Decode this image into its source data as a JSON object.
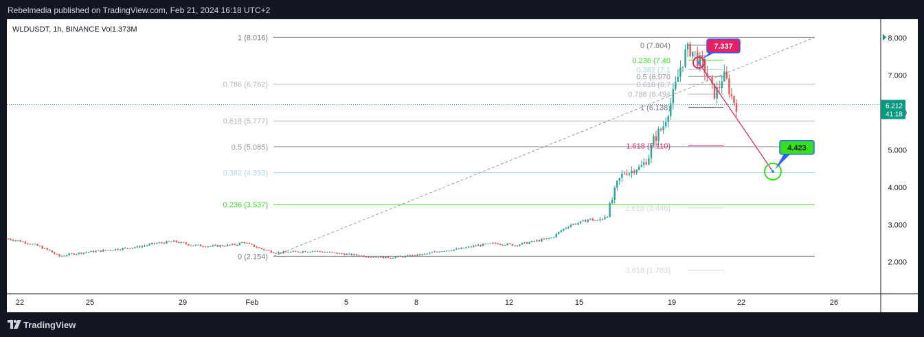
{
  "header": {
    "published_line": "Rebelmedia published on TradingView.com, Feb 21, 2024 16:18 UTC+2"
  },
  "footer": {
    "brand": "TradingView"
  },
  "chart_data": {
    "type": "candlestick",
    "symbol_line": "WLDUSDT, 1h, BINANCE  Vol1.373M",
    "x_ticks": [
      "22",
      "25",
      "29",
      "Feb",
      "5",
      "8",
      "12",
      "15",
      "19",
      "22",
      "26"
    ],
    "y_ticks": [
      "8.000",
      "7.000",
      "6.000",
      "5.000",
      "4.000",
      "3.000",
      "2.000"
    ],
    "ylim": [
      1.15,
      8.5
    ],
    "current_price": {
      "price": "6.212",
      "countdown": "41:18",
      "value": 6.212
    },
    "fib_retracement_main": [
      {
        "label": "1 (8.016)",
        "level": 8.016,
        "color": "#787b86"
      },
      {
        "label": "0.786 (6.762)",
        "level": 6.762,
        "color": "#b2b5be"
      },
      {
        "label": "0.618 (5.777)",
        "level": 5.777,
        "color": "#b2b5be"
      },
      {
        "label": "0.5 (5.085)",
        "level": 5.085,
        "color": "#9598a1"
      },
      {
        "label": "0.382 (4.393)",
        "level": 4.393,
        "color": "#a8dce8"
      },
      {
        "label": "0.236 (3.537)",
        "level": 3.537,
        "color": "#34e01c"
      },
      {
        "label": "0 (2.154)",
        "level": 2.154,
        "color": "#787b86"
      }
    ],
    "fib_retracement_secondary": [
      {
        "label": "0 (7.804)",
        "level": 7.804,
        "color": "#787b86"
      },
      {
        "label": "0.236 (7.40",
        "level": 7.4,
        "color": "#34e01c"
      },
      {
        "label": "0.382 (7.1",
        "level": 7.15,
        "color": "#a8dce8"
      },
      {
        "label": "0.5 (6.970",
        "level": 6.97,
        "color": "#9598a1"
      },
      {
        "label": "0.618 (6.7",
        "level": 6.75,
        "color": "#b2b5be"
      },
      {
        "label": "0.786 (6.494",
        "level": 6.494,
        "color": "#b2b5be"
      },
      {
        "label": "1 (6.138)",
        "level": 6.138,
        "color": "#787b86"
      },
      {
        "label": "1.618 (5.110)",
        "level": 5.11,
        "color": "#e91e63"
      },
      {
        "label": "2.618 (3.446)",
        "level": 3.446,
        "color": "#d1d4dc"
      },
      {
        "label": "3.618 (1.783)",
        "level": 1.783,
        "color": "#d1d4dc"
      }
    ],
    "annotations": [
      {
        "text": "7.337",
        "value": 7.337,
        "color": "#e91e63"
      },
      {
        "text": "4.423",
        "value": 4.423,
        "color": "#4caf50"
      }
    ],
    "colors": {
      "up": "#26a69a",
      "down": "#ef5350",
      "accent": "#089981",
      "projection": "#e91e63",
      "target": "#34e01c"
    },
    "grid": false,
    "price_path": [
      [
        0,
        2.62
      ],
      [
        3,
        2.55
      ],
      [
        6,
        2.45
      ],
      [
        9,
        2.3
      ],
      [
        11,
        2.15
      ],
      [
        13,
        2.2
      ],
      [
        16,
        2.25
      ],
      [
        20,
        2.3
      ],
      [
        24,
        2.35
      ],
      [
        28,
        2.4
      ],
      [
        30,
        2.45
      ],
      [
        32,
        2.5
      ],
      [
        36,
        2.55
      ],
      [
        40,
        2.45
      ],
      [
        44,
        2.42
      ],
      [
        48,
        2.45
      ],
      [
        50,
        2.48
      ],
      [
        51,
        2.55
      ],
      [
        52,
        2.48
      ],
      [
        55,
        2.35
      ],
      [
        58,
        2.25
      ],
      [
        62,
        2.27
      ],
      [
        66,
        2.3
      ],
      [
        70,
        2.25
      ],
      [
        74,
        2.2
      ],
      [
        78,
        2.15
      ],
      [
        82,
        2.12
      ],
      [
        86,
        2.15
      ],
      [
        90,
        2.2
      ],
      [
        94,
        2.3
      ],
      [
        98,
        2.35
      ],
      [
        102,
        2.45
      ],
      [
        106,
        2.5
      ],
      [
        110,
        2.45
      ],
      [
        114,
        2.55
      ],
      [
        118,
        2.65
      ],
      [
        120,
        2.85
      ],
      [
        122,
        3.0
      ],
      [
        124,
        3.05
      ],
      [
        126,
        3.15
      ],
      [
        128,
        3.1
      ],
      [
        130,
        3.3
      ],
      [
        131,
        3.65
      ],
      [
        132,
        4.05
      ],
      [
        133,
        4.3
      ],
      [
        134,
        4.45
      ],
      [
        135,
        4.4
      ],
      [
        136,
        4.55
      ],
      [
        137,
        4.5
      ],
      [
        138,
        4.65
      ],
      [
        139,
        4.85
      ],
      [
        140,
        5.25
      ],
      [
        141,
        5.45
      ],
      [
        142,
        5.6
      ],
      [
        143,
        6.0
      ],
      [
        144,
        6.35
      ],
      [
        145,
        6.8
      ],
      [
        146,
        7.3
      ],
      [
        147,
        7.6
      ],
      [
        148,
        7.7
      ],
      [
        149,
        7.55
      ],
      [
        150,
        7.35
      ],
      [
        151,
        7.2
      ],
      [
        152,
        6.9
      ],
      [
        153,
        6.5
      ],
      [
        154,
        6.6
      ],
      [
        155,
        7.0
      ],
      [
        156,
        6.8
      ],
      [
        157,
        6.4
      ],
      [
        158,
        6.2
      ]
    ]
  }
}
